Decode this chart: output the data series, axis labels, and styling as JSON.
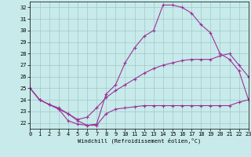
{
  "bg_color": "#c8eaea",
  "grid_color": "#a0c8c8",
  "line_color": "#993399",
  "xlabel": "Windchill (Refroidissement éolien,°C)",
  "xlim": [
    0,
    23
  ],
  "ylim": [
    21.5,
    32.5
  ],
  "yticks": [
    22,
    23,
    24,
    25,
    26,
    27,
    28,
    29,
    30,
    31,
    32
  ],
  "xticks": [
    0,
    1,
    2,
    3,
    4,
    5,
    6,
    7,
    8,
    9,
    10,
    11,
    12,
    13,
    14,
    15,
    16,
    17,
    18,
    19,
    20,
    21,
    22,
    23
  ],
  "series": [
    {
      "x": [
        0,
        1,
        2,
        3,
        4,
        5,
        6,
        7,
        8,
        9,
        10,
        11,
        12,
        13,
        14,
        15,
        16,
        17,
        18,
        19,
        20,
        21,
        22,
        23
      ],
      "y": [
        25.0,
        24.0,
        23.6,
        23.2,
        22.2,
        21.9,
        21.8,
        21.9,
        24.5,
        25.3,
        27.2,
        28.5,
        29.5,
        30.0,
        32.2,
        32.2,
        32.0,
        31.5,
        30.5,
        29.8,
        28.0,
        27.5,
        26.5,
        24.0
      ]
    },
    {
      "x": [
        0,
        1,
        2,
        3,
        4,
        5,
        6,
        7,
        8,
        9,
        10,
        11,
        12,
        13,
        14,
        15,
        16,
        17,
        18,
        19,
        20,
        21,
        22,
        23
      ],
      "y": [
        25.0,
        24.0,
        23.6,
        23.3,
        22.8,
        22.3,
        22.5,
        23.3,
        24.2,
        24.8,
        25.3,
        25.8,
        26.3,
        26.7,
        27.0,
        27.2,
        27.4,
        27.5,
        27.5,
        27.5,
        27.8,
        28.0,
        27.0,
        26.0
      ]
    },
    {
      "x": [
        0,
        1,
        2,
        3,
        4,
        5,
        6,
        7,
        8,
        9,
        10,
        11,
        12,
        13,
        14,
        15,
        16,
        17,
        18,
        19,
        20,
        21,
        22,
        23
      ],
      "y": [
        25.0,
        24.0,
        23.6,
        23.2,
        22.8,
        22.2,
        21.8,
        21.8,
        22.8,
        23.2,
        23.3,
        23.4,
        23.5,
        23.5,
        23.5,
        23.5,
        23.5,
        23.5,
        23.5,
        23.5,
        23.5,
        23.5,
        23.8,
        24.0
      ]
    }
  ]
}
